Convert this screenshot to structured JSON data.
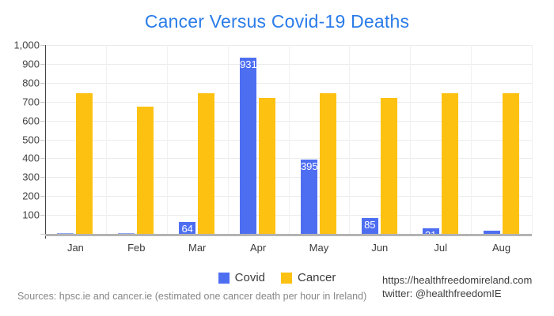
{
  "title": {
    "text": "Cancer Versus Covid-19 Deaths",
    "color": "#2b7ce9"
  },
  "chart_data": {
    "type": "bar",
    "title": "Cancer Versus Covid-19 Deaths",
    "categories": [
      "Jan",
      "Feb",
      "Mar",
      "Apr",
      "May",
      "Jun",
      "Jul",
      "Aug"
    ],
    "series": [
      {
        "name": "Covid",
        "color": "#4e6ef2",
        "values": [
          0,
          0,
          64,
          931,
          395,
          85,
          31,
          17
        ],
        "annotations": [
          "",
          "",
          "64",
          "931",
          "395",
          "85",
          "31",
          ""
        ]
      },
      {
        "name": "Cancer",
        "color": "#fdc211",
        "values": [
          744,
          672,
          744,
          720,
          744,
          720,
          744,
          744
        ],
        "annotations": [
          "",
          "",
          "",
          "",
          "",
          "",
          "",
          ""
        ]
      }
    ],
    "xlabel": "",
    "ylabel": "",
    "ylim": [
      0,
      1000
    ],
    "ytick_step": 100,
    "ytick_labels": [
      "100",
      "200",
      "300",
      "400",
      "500",
      "600",
      "700",
      "800",
      "900",
      "1,000"
    ],
    "grid": true,
    "legend_position": "bottom"
  },
  "legend": {
    "items": [
      {
        "label": "Covid",
        "color": "#4e6ef2"
      },
      {
        "label": "Cancer",
        "color": "#fdc211"
      }
    ]
  },
  "footer": {
    "sources": "Sources: hpsc.ie and cancer.ie (estimated one cancer death per hour in Ireland)",
    "website": "https://healthfreedomireland.com",
    "twitter": "twitter: @healthfreedomIE"
  }
}
